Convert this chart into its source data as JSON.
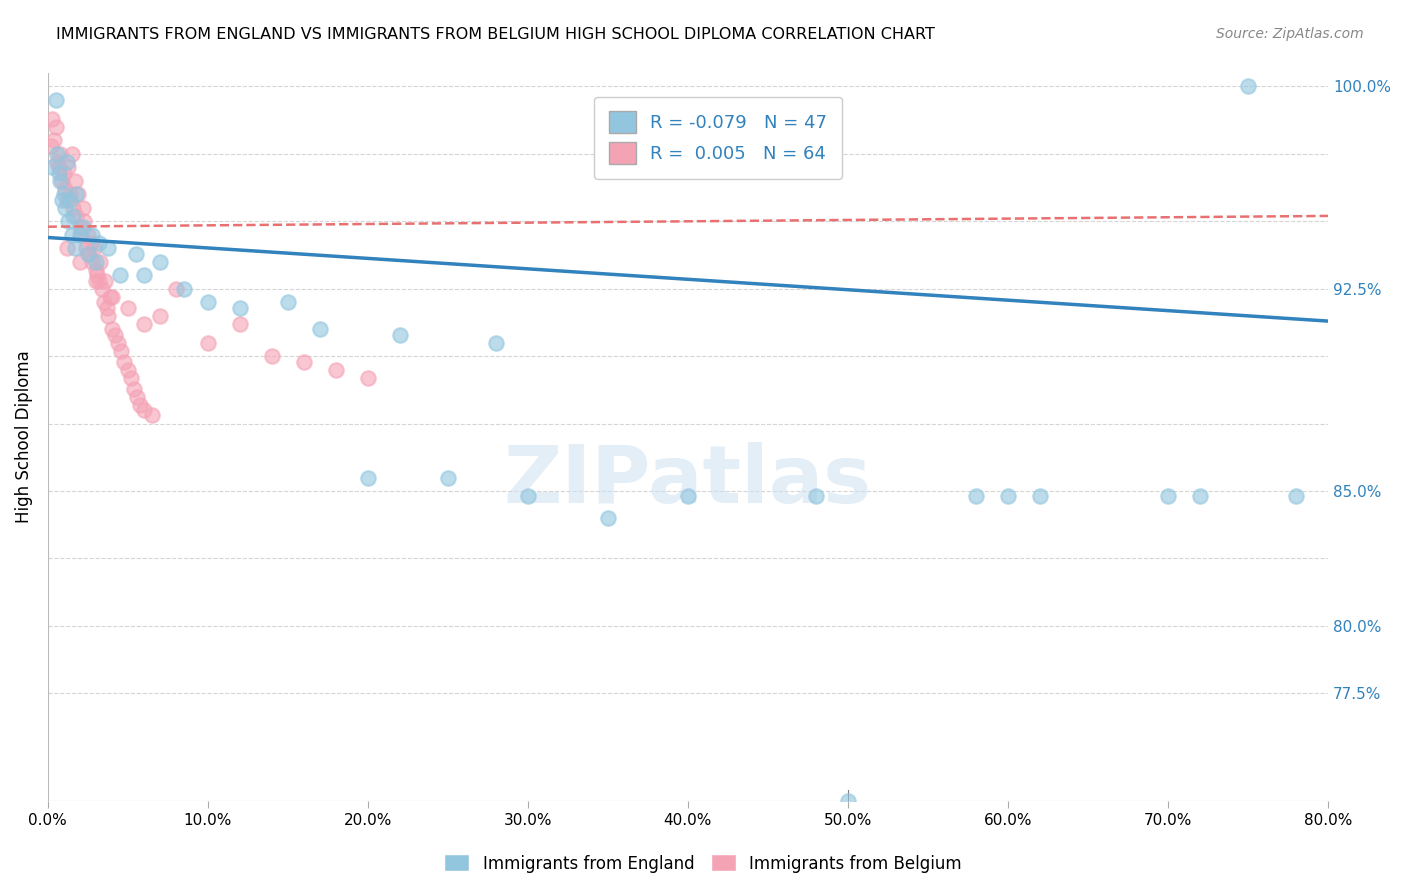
{
  "title": "IMMIGRANTS FROM ENGLAND VS IMMIGRANTS FROM BELGIUM HIGH SCHOOL DIPLOMA CORRELATION CHART",
  "source": "Source: ZipAtlas.com",
  "ylabel": "High School Diploma",
  "xlim": [
    0.0,
    0.8
  ],
  "ylim": [
    0.735,
    1.005
  ],
  "england_R": "-0.079",
  "england_N": "47",
  "belgium_R": "0.005",
  "belgium_N": "64",
  "england_color": "#92c5de",
  "belgium_color": "#f4a3b5",
  "trend_england_color": "#3182bd",
  "trend_belgium_color": "#e87070",
  "watermark_color": "#cce0f0",
  "england_scatter_x": [
    0.003,
    0.005,
    0.006,
    0.007,
    0.008,
    0.009,
    0.01,
    0.011,
    0.012,
    0.013,
    0.014,
    0.015,
    0.016,
    0.017,
    0.018,
    0.02,
    0.022,
    0.025,
    0.028,
    0.03,
    0.032,
    0.038,
    0.045,
    0.055,
    0.06,
    0.07,
    0.085,
    0.1,
    0.12,
    0.15,
    0.17,
    0.2,
    0.22,
    0.25,
    0.28,
    0.3,
    0.35,
    0.4,
    0.48,
    0.5,
    0.58,
    0.6,
    0.62,
    0.7,
    0.72,
    0.75,
    0.78
  ],
  "england_scatter_y": [
    0.97,
    0.995,
    0.975,
    0.968,
    0.965,
    0.958,
    0.96,
    0.955,
    0.972,
    0.95,
    0.958,
    0.945,
    0.952,
    0.94,
    0.96,
    0.945,
    0.948,
    0.938,
    0.945,
    0.935,
    0.942,
    0.94,
    0.93,
    0.938,
    0.93,
    0.935,
    0.925,
    0.92,
    0.918,
    0.92,
    0.91,
    0.855,
    0.908,
    0.855,
    0.905,
    0.848,
    0.84,
    0.848,
    0.848,
    0.735,
    0.848,
    0.848,
    0.848,
    0.848,
    0.848,
    1.0,
    0.848
  ],
  "belgium_scatter_x": [
    0.002,
    0.003,
    0.004,
    0.005,
    0.006,
    0.007,
    0.008,
    0.009,
    0.01,
    0.011,
    0.012,
    0.013,
    0.014,
    0.015,
    0.016,
    0.017,
    0.018,
    0.019,
    0.02,
    0.021,
    0.022,
    0.023,
    0.024,
    0.025,
    0.026,
    0.027,
    0.028,
    0.029,
    0.03,
    0.031,
    0.032,
    0.033,
    0.034,
    0.035,
    0.036,
    0.037,
    0.038,
    0.039,
    0.04,
    0.042,
    0.044,
    0.046,
    0.048,
    0.05,
    0.052,
    0.054,
    0.056,
    0.058,
    0.06,
    0.065,
    0.012,
    0.02,
    0.03,
    0.04,
    0.05,
    0.06,
    0.07,
    0.08,
    0.1,
    0.12,
    0.14,
    0.16,
    0.18,
    0.2
  ],
  "belgium_scatter_y": [
    0.978,
    0.988,
    0.98,
    0.985,
    0.972,
    0.97,
    0.975,
    0.965,
    0.968,
    0.962,
    0.958,
    0.97,
    0.96,
    0.975,
    0.955,
    0.965,
    0.952,
    0.96,
    0.948,
    0.945,
    0.955,
    0.95,
    0.94,
    0.945,
    0.938,
    0.942,
    0.935,
    0.94,
    0.932,
    0.93,
    0.928,
    0.935,
    0.925,
    0.92,
    0.928,
    0.918,
    0.915,
    0.922,
    0.91,
    0.908,
    0.905,
    0.902,
    0.898,
    0.895,
    0.892,
    0.888,
    0.885,
    0.882,
    0.88,
    0.878,
    0.94,
    0.935,
    0.928,
    0.922,
    0.918,
    0.912,
    0.915,
    0.925,
    0.905,
    0.912,
    0.9,
    0.898,
    0.895,
    0.892
  ]
}
